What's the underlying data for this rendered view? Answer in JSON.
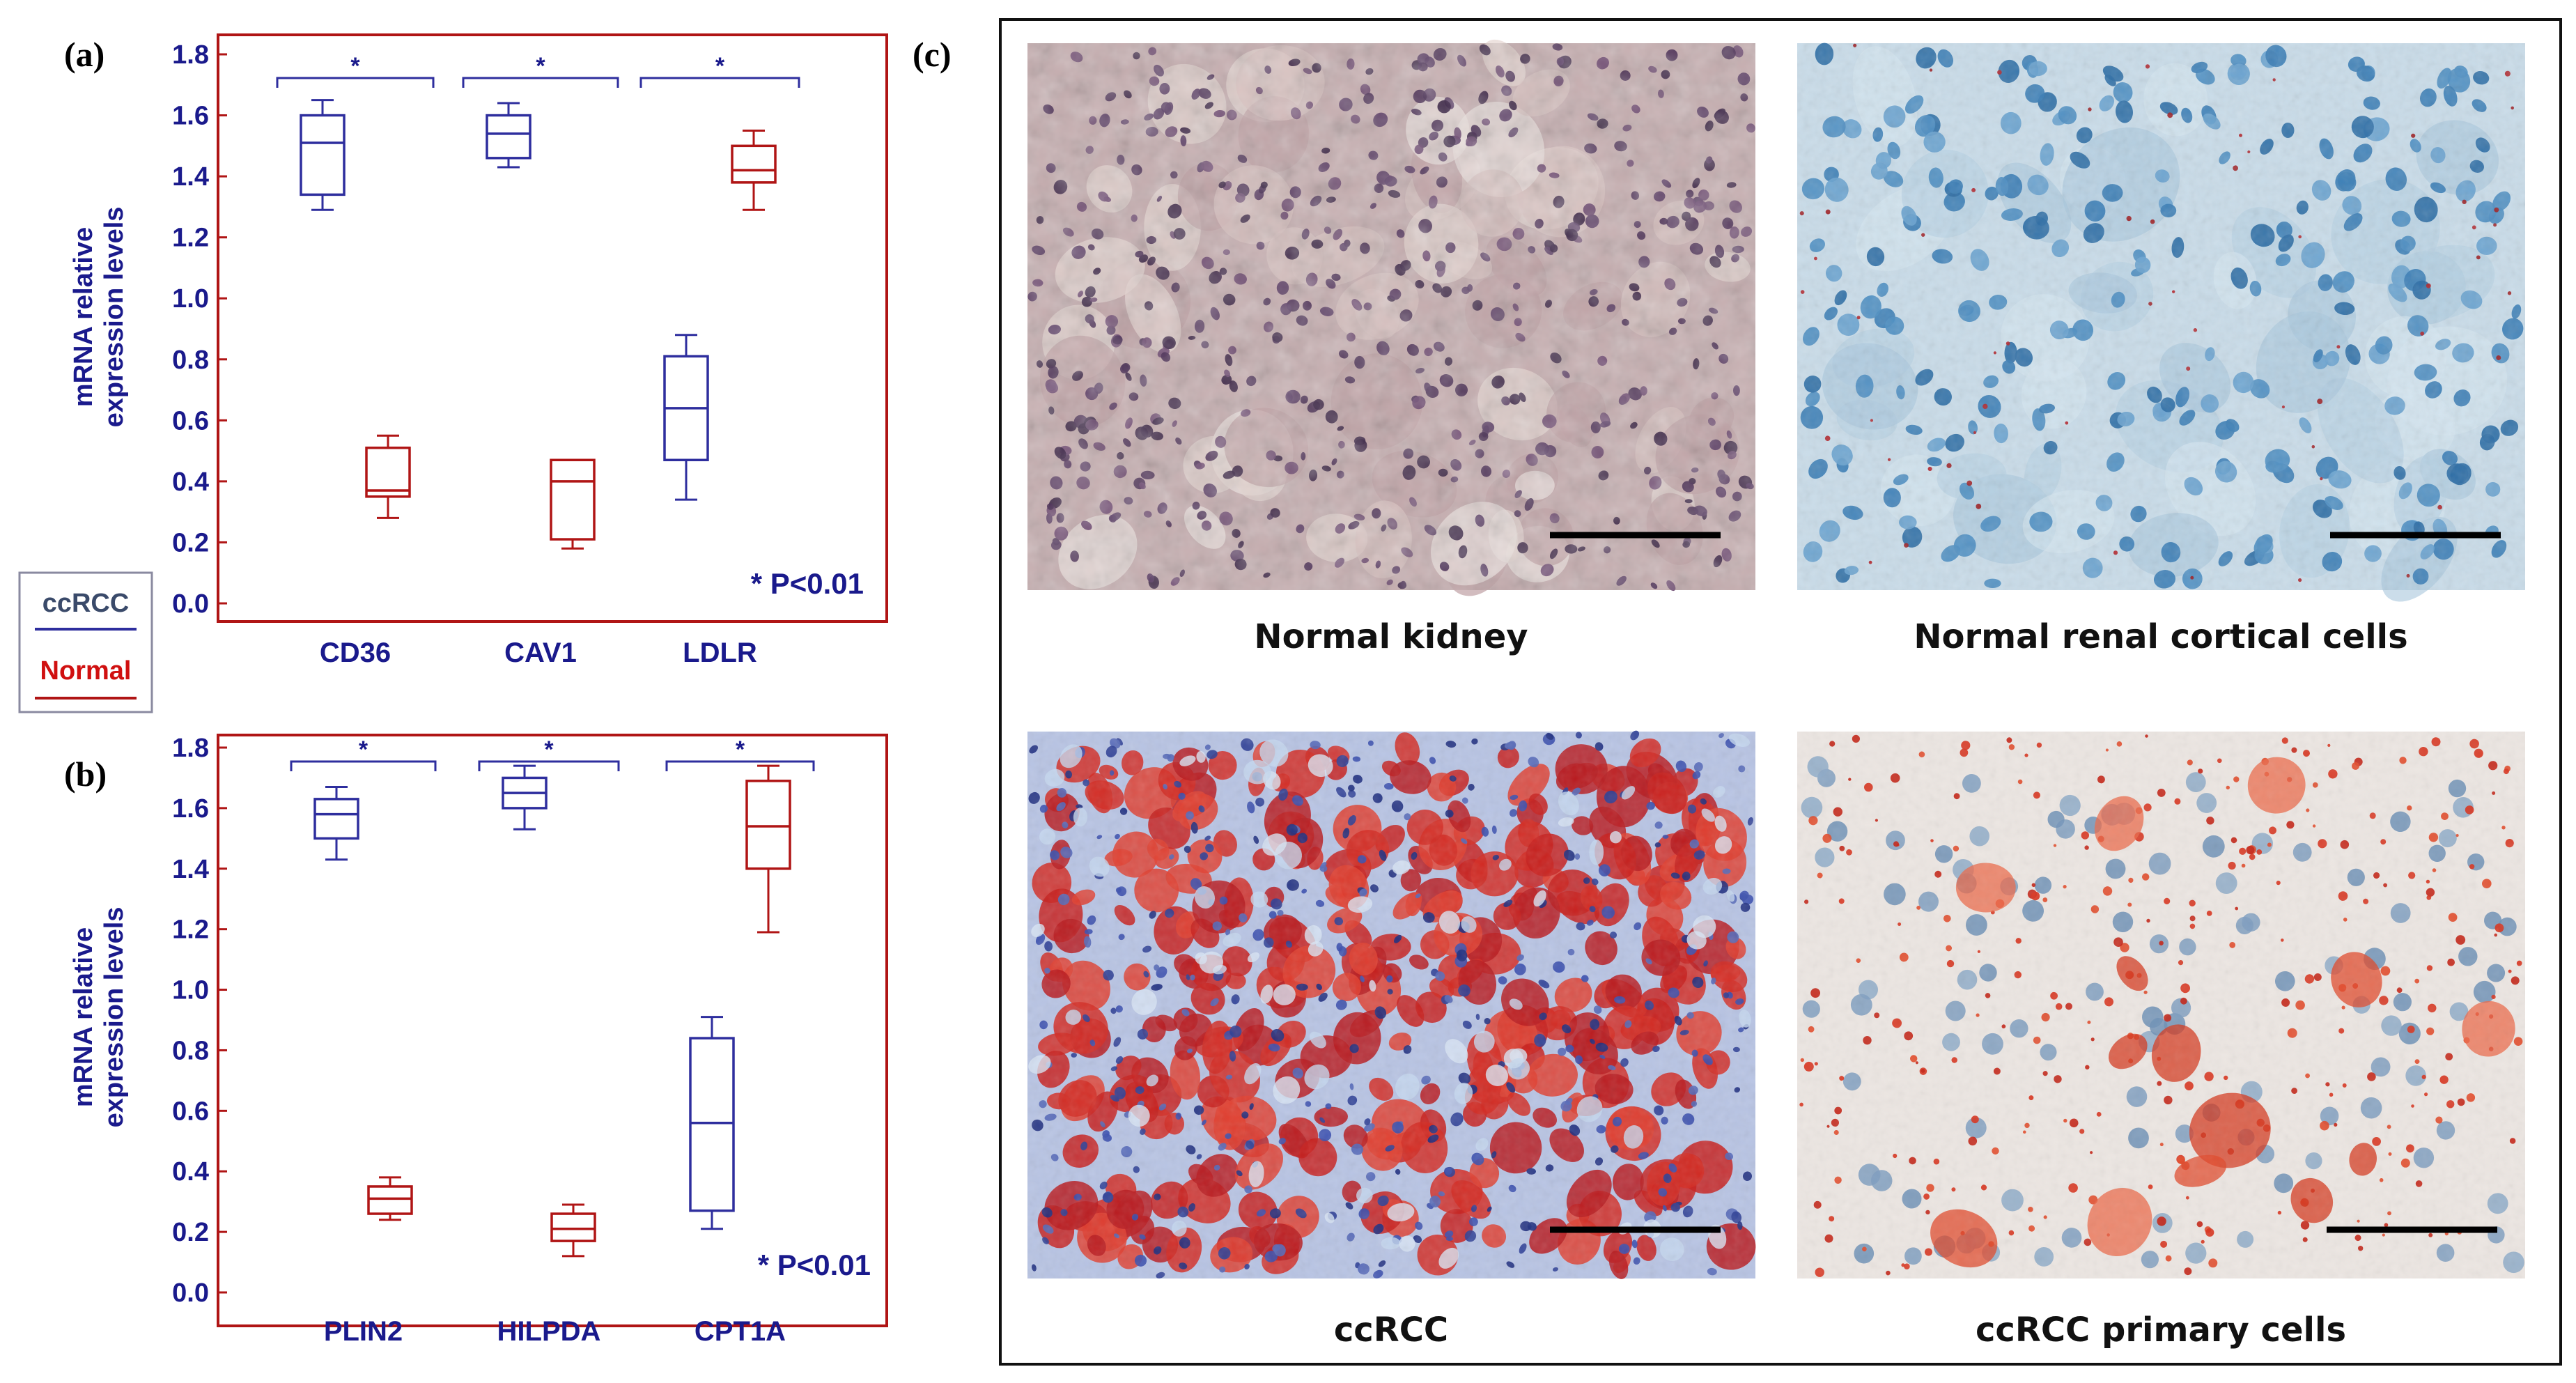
{
  "colors": {
    "ccrcc": "#2e2e9e",
    "normal": "#b01515",
    "frame": "#b01515",
    "axis_text": "#1a1a8c"
  },
  "legend": {
    "ccrcc_label": "ccRCC",
    "normal_label": "Normal"
  },
  "panel_c": {
    "letter": "(c)",
    "captions": [
      "Normal kidney",
      "Normal renal cortical cells",
      "ccRCC",
      "ccRCC primary cells"
    ]
  },
  "chart_data": [
    {
      "type": "box",
      "panel": "(a)",
      "ylabel": [
        "mRNA relative",
        "expression levels"
      ],
      "ylim": [
        0.0,
        1.8
      ],
      "yticks": [
        0.0,
        0.2,
        0.4,
        0.6,
        0.8,
        1.0,
        1.2,
        1.4,
        1.6,
        1.8
      ],
      "categories": [
        "CD36",
        "CAV1",
        "LDLR"
      ],
      "significance": [
        "*",
        "*",
        "*"
      ],
      "note": "* P<0.01",
      "series": [
        {
          "name": "ccRCC",
          "boxes": [
            {
              "min": 1.29,
              "q1": 1.34,
              "median": 1.51,
              "q3": 1.6,
              "max": 1.65
            },
            {
              "min": 1.43,
              "q1": 1.46,
              "median": 1.54,
              "q3": 1.6,
              "max": 1.64
            },
            {
              "min": 0.34,
              "q1": 0.47,
              "median": 0.64,
              "q3": 0.81,
              "max": 0.88
            }
          ]
        },
        {
          "name": "Normal",
          "boxes": [
            {
              "min": 0.28,
              "q1": 0.35,
              "median": 0.37,
              "q3": 0.51,
              "max": 0.55
            },
            {
              "min": 0.18,
              "q1": 0.21,
              "median": 0.4,
              "q3": 0.47,
              "max": 0.47
            },
            {
              "min": 1.29,
              "q1": 1.38,
              "median": 1.42,
              "q3": 1.5,
              "max": 1.55
            }
          ]
        }
      ]
    },
    {
      "type": "box",
      "panel": "(b)",
      "ylabel": [
        "mRNA relative",
        "expression levels"
      ],
      "ylim": [
        0.0,
        1.8
      ],
      "yticks": [
        0.0,
        0.2,
        0.4,
        0.6,
        0.8,
        1.0,
        1.2,
        1.4,
        1.6,
        1.8
      ],
      "categories": [
        "PLIN2",
        "HILPDA",
        "CPT1A"
      ],
      "significance": [
        "*",
        "*",
        "*"
      ],
      "note": "* P<0.01",
      "series": [
        {
          "name": "ccRCC",
          "boxes": [
            {
              "min": 1.43,
              "q1": 1.5,
              "median": 1.58,
              "q3": 1.63,
              "max": 1.67
            },
            {
              "min": 1.53,
              "q1": 1.6,
              "median": 1.65,
              "q3": 1.7,
              "max": 1.74
            },
            {
              "min": 0.21,
              "q1": 0.27,
              "median": 0.56,
              "q3": 0.84,
              "max": 0.91
            }
          ]
        },
        {
          "name": "Normal",
          "boxes": [
            {
              "min": 0.24,
              "q1": 0.26,
              "median": 0.31,
              "q3": 0.35,
              "max": 0.38
            },
            {
              "min": 0.12,
              "q1": 0.17,
              "median": 0.21,
              "q3": 0.26,
              "max": 0.29
            },
            {
              "min": 1.19,
              "q1": 1.4,
              "median": 1.54,
              "q3": 1.69,
              "max": 1.74
            }
          ]
        }
      ]
    }
  ]
}
